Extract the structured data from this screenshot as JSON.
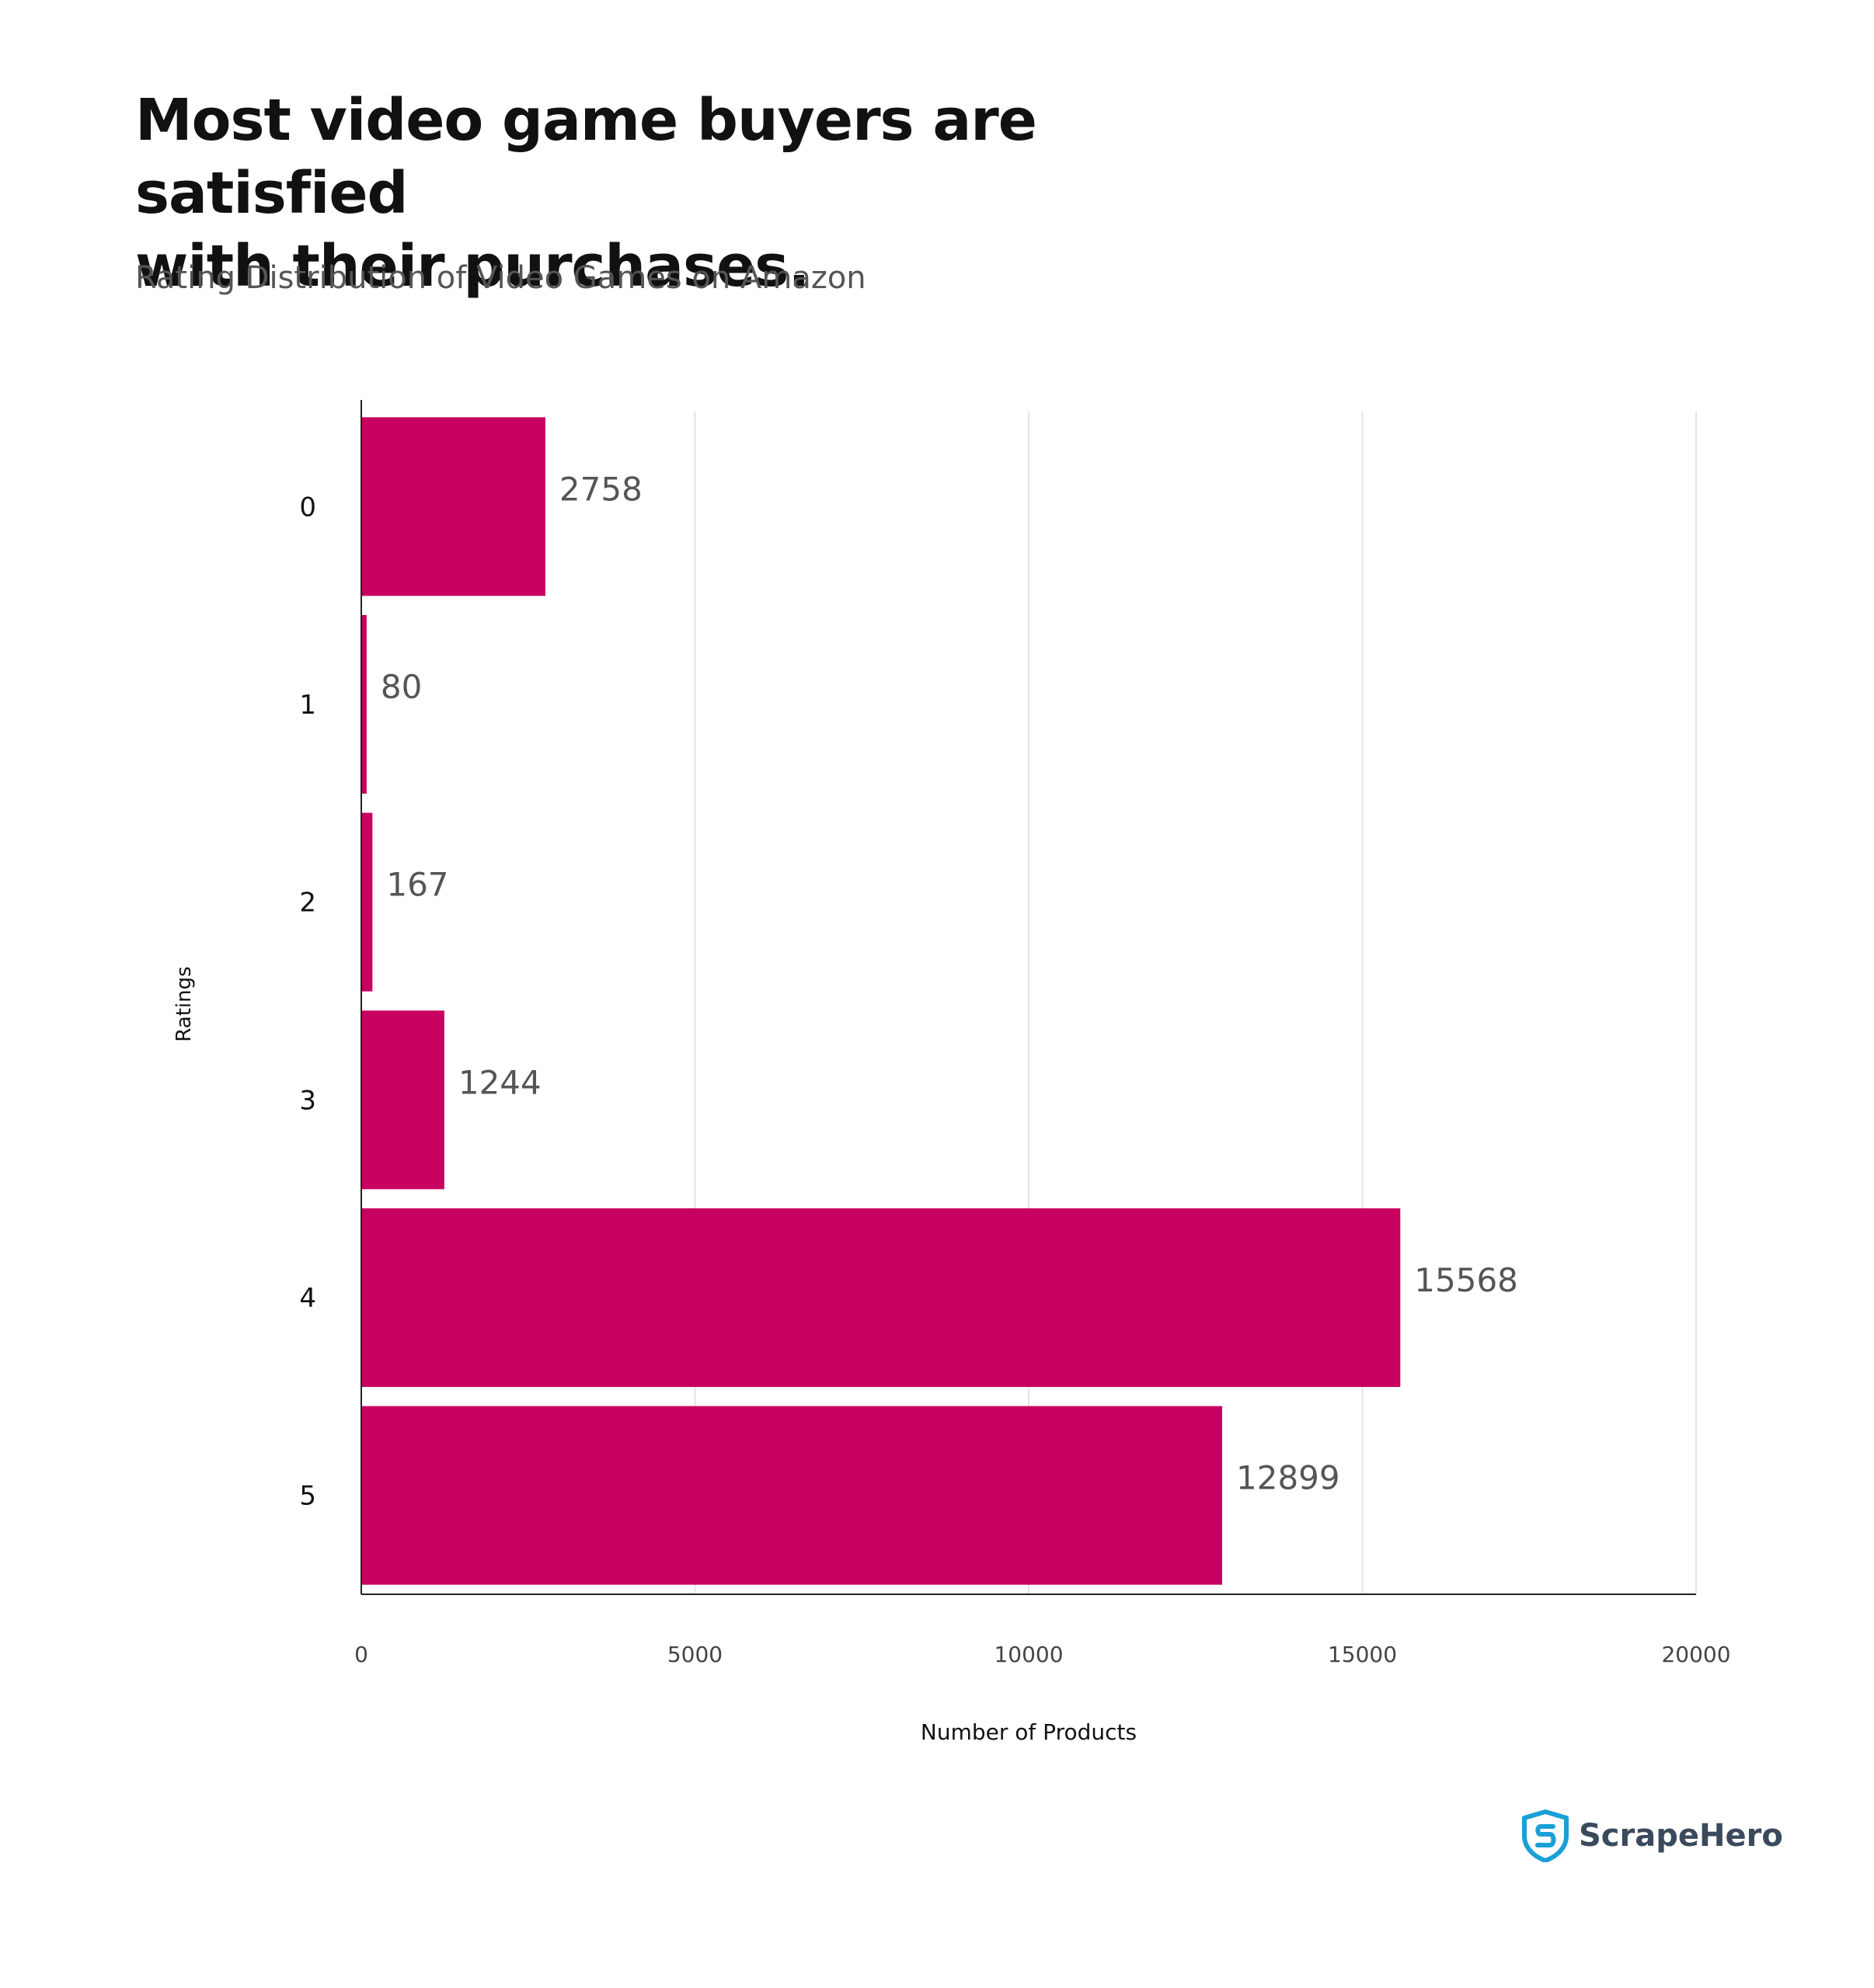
{
  "header": {
    "title_line1": "Most video game buyers are satisfied",
    "title_line2": "with their purchases.",
    "subtitle": "Rating Distribution of Video Games on Amazon"
  },
  "chart_data": {
    "type": "bar",
    "orientation": "horizontal",
    "categories": [
      "0",
      "1",
      "2",
      "3",
      "4",
      "5"
    ],
    "values": [
      2758,
      80,
      167,
      1244,
      15568,
      12899
    ],
    "xlabel": "Number of Products",
    "ylabel": "Ratings",
    "xlim": [
      0,
      20000
    ],
    "xticks": [
      0,
      5000,
      10000,
      15000,
      20000
    ],
    "grid": "vertical",
    "bar_color": "#c8005f"
  },
  "brand": {
    "name": "ScrapeHero",
    "icon": "shield-s-icon",
    "icon_color": "#1a9fd6"
  }
}
